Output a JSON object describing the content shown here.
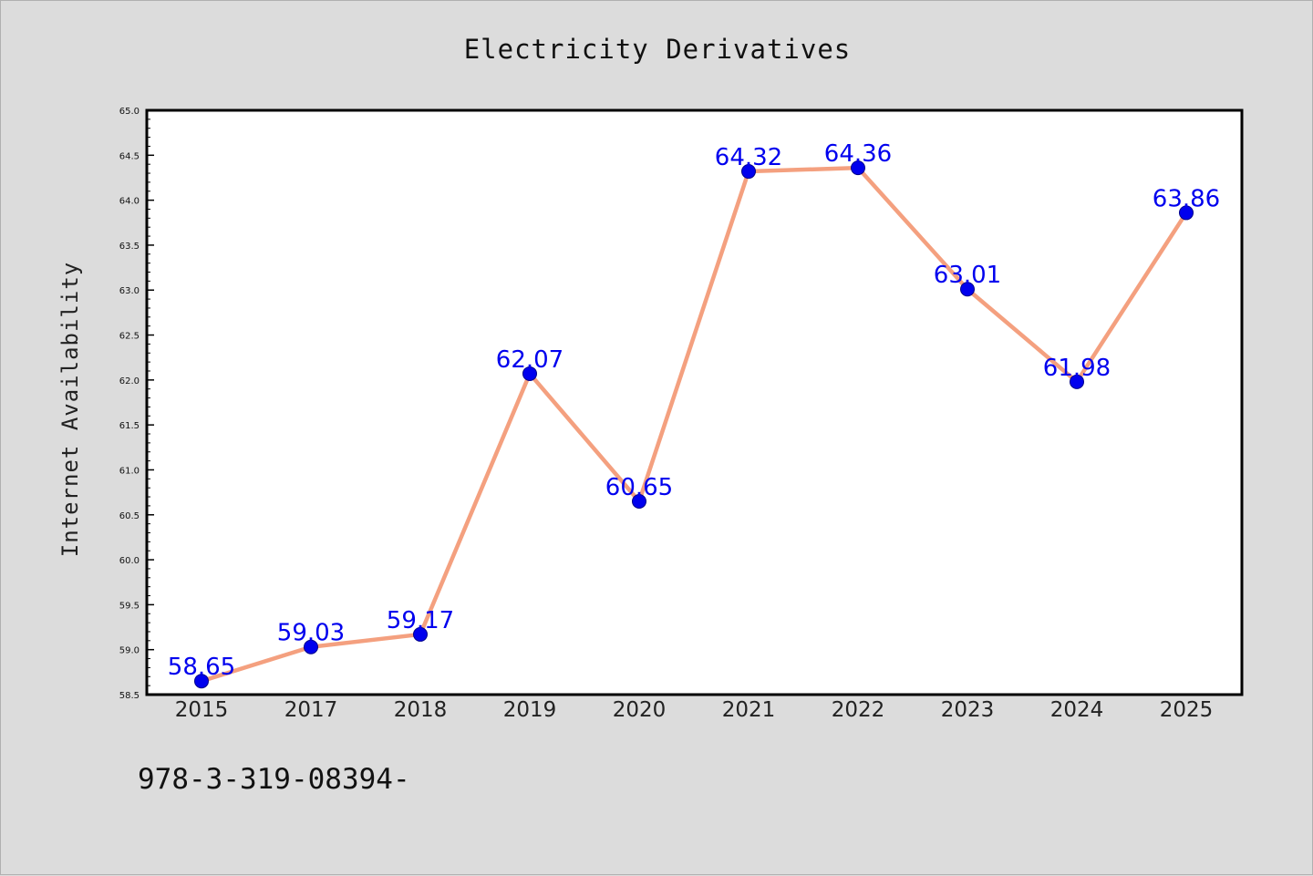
{
  "chart_data": {
    "type": "line",
    "title": "Electricity Derivatives",
    "xlabel": "",
    "ylabel": "Internet Availability",
    "categories": [
      "2015",
      "2017",
      "2018",
      "2019",
      "2020",
      "2021",
      "2022",
      "2023",
      "2024",
      "2025"
    ],
    "series": [
      {
        "values": [
          58.65,
          59.03,
          59.17,
          62.07,
          60.65,
          64.32,
          64.36,
          63.01,
          61.98,
          63.86
        ],
        "labels": [
          "58.65",
          "59.03",
          "59.17",
          "62.07",
          "60.65",
          "64.32",
          "64.36",
          "63.01",
          "61.98",
          "63.86"
        ],
        "line_color": "#f4a07f",
        "marker_color": "#0000ee"
      }
    ],
    "ylim": [
      58.5,
      65.0
    ],
    "yticks": [
      "58.5",
      "59.0",
      "59.5",
      "60.0",
      "60.5",
      "61.0",
      "61.5",
      "62.0",
      "62.5",
      "63.0",
      "63.5",
      "64.0",
      "64.5",
      "65.0"
    ],
    "grid": false,
    "legend": "none"
  },
  "footnote": "978-3-319-08394-",
  "colors": {
    "background": "#dcdcdc",
    "plot_area": "#ffffff",
    "line": "#f4a07f",
    "marker": "#0000ee",
    "data_label": "#0000ee"
  }
}
